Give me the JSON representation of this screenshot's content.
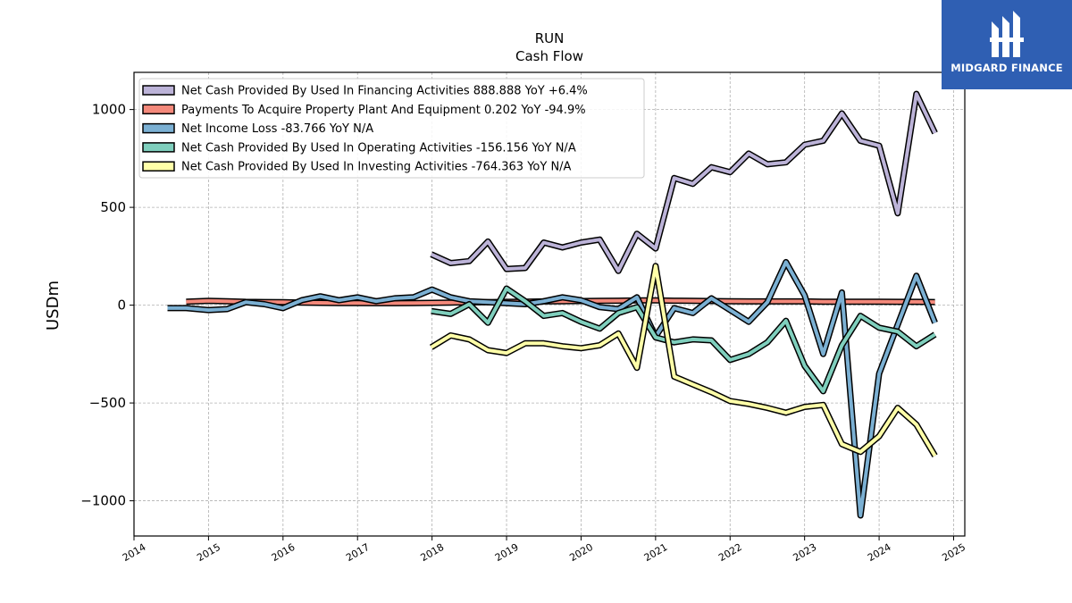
{
  "chart_data": {
    "type": "line",
    "title": "RUN",
    "subtitle": "Cash Flow",
    "xlabel": "",
    "ylabel": "USDm",
    "xlim": [
      2014.0,
      2025.15
    ],
    "ylim": [
      -1180,
      1190
    ],
    "x_ticks": [
      "2014",
      "2015",
      "2016",
      "2017",
      "2018",
      "2019",
      "2020",
      "2021",
      "2022",
      "2023",
      "2024",
      "2025"
    ],
    "y_ticks": [
      1000,
      500,
      0,
      -500,
      -1000
    ],
    "y_tick_labels": [
      "1000",
      "500",
      "0",
      "−500",
      "−1000"
    ],
    "grid": true,
    "legend_position": "top-left",
    "series": [
      {
        "name": "Net Cash Provided By Used In Financing Activities",
        "legend": "Net Cash Provided By Used In Financing Activities  888.888 YoY +6.4%",
        "color": "#bcb3d8",
        "x": [
          2017.99,
          2018.25,
          2018.5,
          2018.75,
          2019.0,
          2019.25,
          2019.5,
          2019.75,
          2020.0,
          2020.25,
          2020.5,
          2020.75,
          2021.0,
          2021.25,
          2021.5,
          2021.75,
          2022.0,
          2022.25,
          2022.5,
          2022.75,
          2023.0,
          2023.25,
          2023.5,
          2023.75,
          2024.0,
          2024.25,
          2024.5,
          2024.75
        ],
        "values": [
          260,
          215,
          225,
          325,
          185,
          190,
          320,
          295,
          320,
          335,
          175,
          365,
          290,
          650,
          620,
          705,
          680,
          775,
          720,
          730,
          820,
          840,
          980,
          840,
          815,
          470,
          1080,
          880
        ]
      },
      {
        "name": "Payments To Acquire Property Plant And Equipment",
        "legend": "Payments To Acquire Property Plant And Equipment  0.202 YoY -94.9%",
        "color": "#f4897b",
        "x": [
          2014.7,
          2015.0,
          2015.25,
          2015.5,
          2015.75,
          2016.0,
          2016.25,
          2016.5,
          2016.75,
          2017.0,
          2017.25,
          2017.5,
          2017.75,
          2018.0,
          2018.25,
          2018.5,
          2018.75,
          2019.0,
          2019.25,
          2019.5,
          2019.75,
          2020.0,
          2020.25,
          2020.5,
          2020.75,
          2021.0,
          2021.25,
          2021.5,
          2021.75,
          2022.0,
          2022.25,
          2022.5,
          2022.75,
          2023.0,
          2023.25,
          2023.5,
          2023.75,
          2024.0,
          2024.25,
          2024.5,
          2024.75
        ],
        "values": [
          18,
          22,
          20,
          17,
          16,
          15,
          13,
          12,
          11,
          11,
          10,
          10,
          11,
          12,
          13,
          14,
          15,
          17,
          18,
          19,
          20,
          21,
          22,
          23,
          24,
          24,
          23,
          22,
          21,
          20,
          19,
          19,
          19,
          19,
          18,
          18,
          18,
          18,
          17,
          17,
          16
        ]
      },
      {
        "name": "Net Income Loss",
        "legend": "Net Income Loss  -83.766 YoY N/A",
        "color": "#7bb0d3",
        "x": [
          2014.45,
          2014.7,
          2015.0,
          2015.25,
          2015.5,
          2015.75,
          2016.0,
          2016.25,
          2016.5,
          2016.75,
          2017.0,
          2017.25,
          2017.5,
          2017.75,
          2018.0,
          2018.25,
          2018.5,
          2018.75,
          2019.0,
          2019.25,
          2019.5,
          2019.75,
          2020.0,
          2020.25,
          2020.5,
          2020.75,
          2021.0,
          2021.25,
          2021.5,
          2021.75,
          2022.0,
          2022.25,
          2022.5,
          2022.75,
          2023.0,
          2023.25,
          2023.5,
          2023.75,
          2024.0,
          2024.25,
          2024.5,
          2024.75
        ],
        "values": [
          -15,
          -15,
          -25,
          -20,
          15,
          5,
          -15,
          25,
          45,
          25,
          40,
          20,
          35,
          40,
          80,
          40,
          20,
          15,
          10,
          5,
          20,
          40,
          25,
          -10,
          -20,
          40,
          -160,
          -15,
          -40,
          35,
          -25,
          -85,
          15,
          220,
          50,
          -250,
          65,
          -1075,
          -350,
          -100,
          150,
          -90
        ]
      },
      {
        "name": "Net Cash Provided By Used In Operating Activities",
        "legend": "Net Cash Provided By Used In Operating Activities  -156.156 YoY N/A",
        "color": "#7fcfbd",
        "x": [
          2017.99,
          2018.25,
          2018.5,
          2018.75,
          2019.0,
          2019.25,
          2019.5,
          2019.75,
          2020.0,
          2020.25,
          2020.5,
          2020.75,
          2021.0,
          2021.25,
          2021.5,
          2021.75,
          2022.0,
          2022.25,
          2022.5,
          2022.75,
          2023.0,
          2023.25,
          2023.5,
          2023.75,
          2024.0,
          2024.25,
          2024.5,
          2024.75
        ],
        "values": [
          -30,
          -45,
          5,
          -90,
          85,
          20,
          -55,
          -40,
          -85,
          -120,
          -40,
          -10,
          -165,
          -190,
          -175,
          -180,
          -280,
          -250,
          -190,
          -80,
          -310,
          -440,
          -205,
          -55,
          -115,
          -135,
          -210,
          -150
        ]
      },
      {
        "name": "Net Cash Provided By Used In Investing Activities",
        "legend": "Net Cash Provided By Used In Investing Activities  -764.363 YoY N/A",
        "color": "#ffffa8",
        "x": [
          2017.99,
          2018.25,
          2018.5,
          2018.75,
          2019.0,
          2019.25,
          2019.5,
          2019.75,
          2020.0,
          2020.25,
          2020.5,
          2020.75,
          2021.0,
          2021.25,
          2021.5,
          2021.75,
          2022.0,
          2022.25,
          2022.5,
          2022.75,
          2023.0,
          2023.25,
          2023.5,
          2023.75,
          2024.0,
          2024.25,
          2024.5,
          2024.75
        ],
        "values": [
          -215,
          -155,
          -175,
          -230,
          -245,
          -195,
          -195,
          -210,
          -220,
          -205,
          -145,
          -320,
          200,
          -365,
          -405,
          -445,
          -490,
          -505,
          -525,
          -550,
          -520,
          -510,
          -710,
          -750,
          -670,
          -525,
          -610,
          -770
        ]
      }
    ]
  },
  "logo": {
    "text": "MIDGARD FINANCE",
    "bg_color": "#2f5fb3"
  }
}
